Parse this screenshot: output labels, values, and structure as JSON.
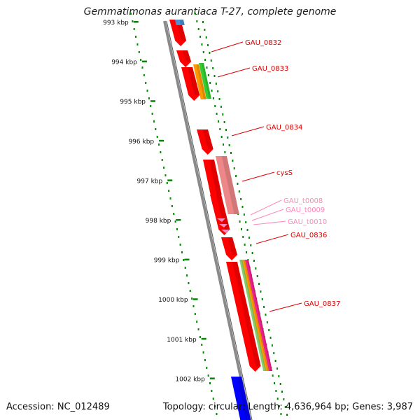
{
  "title": "Gemmatimonas aurantiaca T-27, complete genome",
  "footer": {
    "accession": "Accession: NC_012489",
    "stats": "Topology: circular; Length: 4,636,964 bp; Genes: 3,987"
  },
  "colors": {
    "backbone": "#808080",
    "cds": "#ff0000",
    "trna": "#ff88bb",
    "other_gene": "#ee8888",
    "blue_gene": "#0000ff",
    "light_blue_gene": "#4a90d0",
    "orange": "#ff9900",
    "green": "#33cc33",
    "magenta": "#ee2288",
    "tick_green": "#008800"
  },
  "ticks": [
    "993 kbp",
    "994 kbp",
    "995 kbp",
    "996 kbp",
    "997 kbp",
    "998 kbp",
    "999 kbp",
    "1000 kbp",
    "1001 kbp",
    "1002 kbp"
  ],
  "labels": [
    {
      "text": "GAU_0832",
      "color": "#dd0000"
    },
    {
      "text": "GAU_0833",
      "color": "#dd0000"
    },
    {
      "text": "GAU_0834",
      "color": "#dd0000"
    },
    {
      "text": "cysS",
      "color": "#dd0000"
    },
    {
      "text": "GAU_t0008",
      "color": "#ff88bb"
    },
    {
      "text": "GAU_t0009",
      "color": "#ff88bb"
    },
    {
      "text": "GAU_t0010",
      "color": "#ff88bb"
    },
    {
      "text": "GAU_0836",
      "color": "#dd0000"
    },
    {
      "text": "GAU_0837",
      "color": "#dd0000"
    }
  ]
}
